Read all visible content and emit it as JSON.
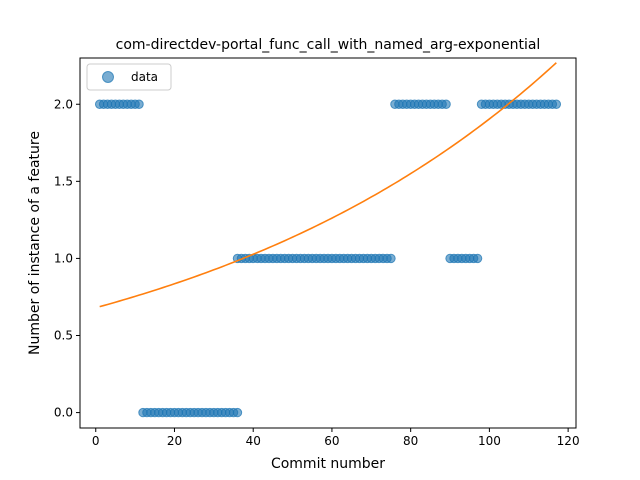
{
  "chart_data": {
    "type": "scatter",
    "title": "com-directdev-portal_func_call_with_named_arg-exponential",
    "xlabel": "Commit number",
    "ylabel": "Number of instance of a feature",
    "xlim": [
      -4,
      122
    ],
    "ylim": [
      -0.1,
      2.3
    ],
    "xticks": [
      0,
      20,
      40,
      60,
      80,
      100,
      120
    ],
    "yticks": [
      0.0,
      0.5,
      1.0,
      1.5,
      2.0
    ],
    "xtick_labels": [
      "0",
      "20",
      "40",
      "60",
      "80",
      "100",
      "120"
    ],
    "ytick_labels": [
      "0.0",
      "0.5",
      "1.0",
      "1.5",
      "2.0"
    ],
    "legend": {
      "position": "top-left",
      "entries": [
        "data"
      ]
    },
    "grid": false,
    "colors": {
      "data": "#1f77b4",
      "fit": "#ff7f0e"
    },
    "series": [
      {
        "name": "data",
        "kind": "scatter",
        "segments": [
          {
            "x_start": 1,
            "x_end": 11,
            "y": 2
          },
          {
            "x_start": 12,
            "x_end": 36,
            "y": 0
          },
          {
            "x_start": 36,
            "x_end": 75,
            "y": 1
          },
          {
            "x_start": 76,
            "x_end": 89,
            "y": 2
          },
          {
            "x_start": 90,
            "x_end": 97,
            "y": 1
          },
          {
            "x_start": 98,
            "x_end": 117,
            "y": 2
          }
        ]
      },
      {
        "kind": "line",
        "model": "exponential",
        "a": 0.68,
        "b": 0.0103,
        "x_range": [
          1,
          117
        ]
      }
    ]
  }
}
